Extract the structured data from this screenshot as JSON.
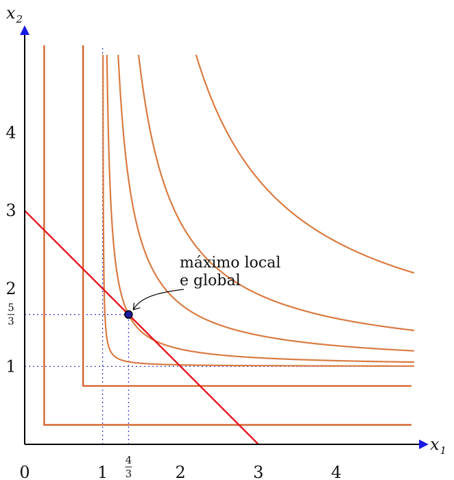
{
  "chart_data": {
    "type": "line",
    "xlim": [
      0,
      5
    ],
    "ylim": [
      0,
      5
    ],
    "x_label": {
      "var": "x",
      "sub": "1"
    },
    "y_label": {
      "var": "x",
      "sub": "2"
    },
    "x_ticks": [
      {
        "value": 0,
        "label": "0"
      },
      {
        "value": 1,
        "label": "1"
      },
      {
        "value": 2,
        "label": "2"
      },
      {
        "value": 3,
        "label": "3"
      },
      {
        "value": 4,
        "label": "4"
      }
    ],
    "x_frac_tick": {
      "value": 1.3333,
      "num": "4",
      "den": "3"
    },
    "y_ticks": [
      {
        "value": 1,
        "label": "1"
      },
      {
        "value": 2,
        "label": "2"
      },
      {
        "value": 3,
        "label": "3"
      },
      {
        "value": 4,
        "label": "4"
      }
    ],
    "y_frac_tick": {
      "value": 1.6667,
      "num": "5",
      "den": "3"
    },
    "constraint_line": {
      "points": [
        [
          0,
          3
        ],
        [
          3,
          0
        ]
      ],
      "color": "#e8141c"
    },
    "level_curves": [
      {
        "type": "corner",
        "corner": [
          0.25,
          0.25
        ],
        "color": "#d25a1f"
      },
      {
        "type": "corner",
        "corner": [
          0.75,
          0.75
        ],
        "color": "#d25a1f"
      },
      {
        "type": "hyperbola",
        "x0": 1,
        "y0": 1,
        "k": 0.02,
        "color": "#d97a40"
      },
      {
        "type": "hyperbola",
        "x0": 1,
        "y0": 1,
        "k": 0.2222,
        "color": "#d97a40"
      },
      {
        "type": "hyperbola",
        "x0": 1,
        "y0": 1,
        "k": 0.8,
        "color": "#d97a40"
      },
      {
        "type": "hyperbola",
        "x0": 1,
        "y0": 1,
        "k": 1.85,
        "color": "#d97a40"
      },
      {
        "type": "hyperbola",
        "x0": 1,
        "y0": 1,
        "k": 4.8,
        "color": "#d97a40"
      }
    ],
    "guide_lines": [
      {
        "orient": "v",
        "value": 1
      },
      {
        "orient": "v",
        "value": 1.3333
      },
      {
        "orient": "h",
        "value": 1
      },
      {
        "orient": "h",
        "value": 1.6667
      }
    ],
    "optimum_point": {
      "x": 1.3333,
      "y": 1.6667,
      "fill": "#1a1aa0"
    },
    "annotation": {
      "lines": [
        "máximo local",
        "e global"
      ]
    },
    "grid": false,
    "colors": {
      "axis": "#000000",
      "guide": "#3b3bd6",
      "arrow": "#1a1ae6"
    }
  }
}
